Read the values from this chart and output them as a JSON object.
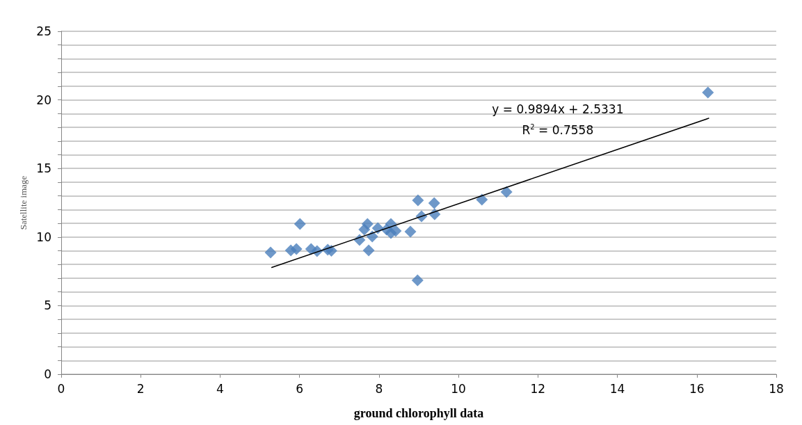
{
  "chart_data": {
    "type": "scatter",
    "xlabel": "ground chlorophyll data",
    "ylabel": "Satellite image",
    "annotations": [
      "y = 0.9894x + 2.5331",
      "R$^{2}$ = 0.7558"
    ],
    "series": [
      {
        "color": "#4a7ebb",
        "marker": "diamond",
        "x": [
          5.27,
          5.78,
          5.92,
          6.01,
          6.29,
          6.44,
          6.71,
          6.8,
          7.51,
          7.63,
          7.71,
          7.74,
          7.83,
          7.97,
          8.19,
          8.3,
          8.3,
          8.42,
          8.79,
          8.98,
          8.97,
          9.07,
          9.39,
          9.4,
          10.59,
          11.21,
          16.28
        ],
        "values": [
          8.87,
          9.03,
          9.13,
          10.95,
          9.13,
          8.98,
          9.08,
          9.0,
          9.79,
          10.55,
          10.95,
          9.03,
          10.04,
          10.65,
          10.55,
          10.95,
          10.29,
          10.45,
          10.4,
          12.68,
          6.85,
          11.51,
          12.47,
          11.66,
          12.73,
          13.29,
          20.54
        ]
      },
      {
        "type": "line",
        "color": "#000000",
        "marker": "none",
        "line_style": "solid",
        "x": [
          5.3,
          16.3
        ],
        "values": [
          7.78,
          18.66
        ]
      }
    ],
    "xlim": [
      0,
      18
    ],
    "xticks": [
      0,
      2,
      4,
      6,
      8,
      10,
      12,
      14,
      16,
      18
    ],
    "ylim": [
      0,
      25
    ],
    "yticks": [
      0,
      {
        "value": 1,
        "label": null
      },
      {
        "value": 2,
        "label": null
      },
      {
        "value": 3,
        "label": null
      },
      {
        "value": 4,
        "label": null
      },
      5,
      {
        "value": 6,
        "label": null
      },
      {
        "value": 7,
        "label": null
      },
      {
        "value": 8,
        "label": null
      },
      {
        "value": 9,
        "label": null
      },
      10,
      {
        "value": 11,
        "label": null
      },
      {
        "value": 12,
        "label": null
      },
      {
        "value": 13,
        "label": null
      },
      {
        "value": 14,
        "label": null
      },
      15,
      {
        "value": 16,
        "label": null
      },
      {
        "value": 17,
        "label": null
      },
      {
        "value": 18,
        "label": null
      },
      {
        "value": 19,
        "label": null
      },
      20,
      {
        "value": 21,
        "label": null
      },
      {
        "value": 22,
        "label": null
      },
      {
        "value": 23,
        "label": null
      },
      {
        "value": 24,
        "label": null
      },
      25
    ],
    "grid": "y"
  }
}
